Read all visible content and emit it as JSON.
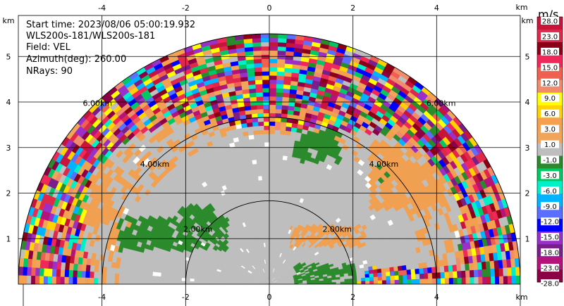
{
  "chart_data": {
    "type": "heatmap",
    "title": "",
    "info_lines": [
      "Start time: 2023/08/06 05:00:19.932",
      "WLS200s-181/WLS200s-181",
      "Field: VEL",
      "Azimuth(deg): 260.00",
      "NRays: 90"
    ],
    "x_unit": "km",
    "y_unit": "km",
    "xlim": [
      -6,
      6
    ],
    "ylim": [
      0,
      5.9
    ],
    "x_ticks": [
      -4,
      -2,
      0,
      2,
      4
    ],
    "y_ticks": [
      1,
      2,
      3,
      4,
      5
    ],
    "grid": true,
    "range_rings": [
      {
        "radius_km": 2,
        "label": "2.00km"
      },
      {
        "radius_km": 4,
        "label": "4.00km"
      },
      {
        "radius_km": 6,
        "label": "6.00km"
      }
    ],
    "field_regions": {
      "background_value_ms": 0,
      "noise_beyond_km": 4.3,
      "patches": [
        {
          "desc": "band west",
          "x": [
            -3.6,
            -1.0
          ],
          "y": [
            0.8,
            1.6
          ],
          "value_ms": -4
        },
        {
          "desc": "band west upper",
          "x": [
            -2.2,
            -1.3
          ],
          "y": [
            1.6,
            1.9
          ],
          "value_ms": -4
        },
        {
          "desc": "north patch",
          "x": [
            0.6,
            1.7
          ],
          "y": [
            2.9,
            3.9
          ],
          "value_ms": -4
        },
        {
          "desc": "east patch",
          "x": [
            2.6,
            3.4
          ],
          "y": [
            2.4,
            3.0
          ],
          "value_ms": -4
        },
        {
          "desc": "south patch",
          "x": [
            0.6,
            2.1
          ],
          "y": [
            0.0,
            0.5
          ],
          "value_ms": -4
        },
        {
          "desc": "approaching west ring",
          "x": [
            -5.2,
            -3.8
          ],
          "y": [
            1.4,
            3.0
          ],
          "value_ms": 2
        },
        {
          "desc": "approaching east",
          "x": [
            0.5,
            2.3
          ],
          "y": [
            0.9,
            1.4
          ],
          "value_ms": 2
        },
        {
          "desc": "approaching near east ring",
          "x": [
            2.4,
            4.2
          ],
          "y": [
            1.8,
            3.4
          ],
          "value_ms": 2
        }
      ]
    },
    "colorbar": {
      "unit": "m/s",
      "labels": [
        "28.0",
        "23.0",
        "18.0",
        "15.0",
        "12.0",
        "9.0",
        "6.0",
        "3.0",
        "1.0",
        "-1.0",
        "-3.0",
        "-6.0",
        "-9.0",
        "-12.0",
        "-15.0",
        "-18.0",
        "-23.0",
        "-28.0"
      ],
      "colors": [
        "#c8143a",
        "#e0284a",
        "#8b0016",
        "#f0285a",
        "#f06050",
        "#f08c6c",
        "#ffff00",
        "#ffd200",
        "#f5a04e",
        "#f0a55a",
        "#bebebe",
        "#2b8a2b",
        "#00c864",
        "#00f0c8",
        "#00b4ff",
        "#5a6eff",
        "#0000ff",
        "#9b30c8",
        "#7a1e8c",
        "#b4147a",
        "#8c0046"
      ]
    }
  }
}
